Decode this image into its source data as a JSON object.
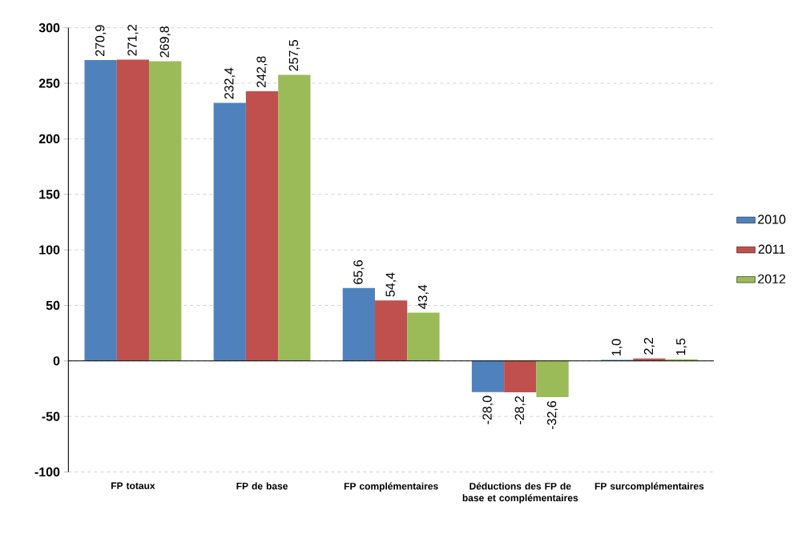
{
  "chart_data": {
    "type": "bar",
    "categories": [
      "FP totaux",
      "FP de base",
      "FP complémentaires",
      "Déductions des FP de base et complémentaires",
      "FP surcomplémentaires"
    ],
    "series": [
      {
        "name": "2010",
        "color": "#4f81bd",
        "values": [
          270.9,
          232.4,
          65.6,
          -28.0,
          1.0
        ],
        "value_labels": [
          "270,9",
          "232,4",
          "65,6",
          "-28,0",
          "1,0"
        ]
      },
      {
        "name": "2011",
        "color": "#c0504d",
        "values": [
          271.2,
          242.8,
          54.4,
          -28.2,
          2.2
        ],
        "value_labels": [
          "271,2",
          "242,8",
          "54,4",
          "-28,2",
          "2,2"
        ]
      },
      {
        "name": "2012",
        "color": "#9bbb59",
        "values": [
          269.8,
          257.5,
          43.4,
          -32.6,
          1.5
        ],
        "value_labels": [
          "269,8",
          "257,5",
          "43,4",
          "-32,6",
          "1,5"
        ]
      }
    ],
    "ylim": [
      -100,
      300
    ],
    "yticks": [
      -100,
      -50,
      0,
      50,
      100,
      150,
      200,
      250,
      300
    ],
    "grid": "y",
    "legend": "right"
  }
}
